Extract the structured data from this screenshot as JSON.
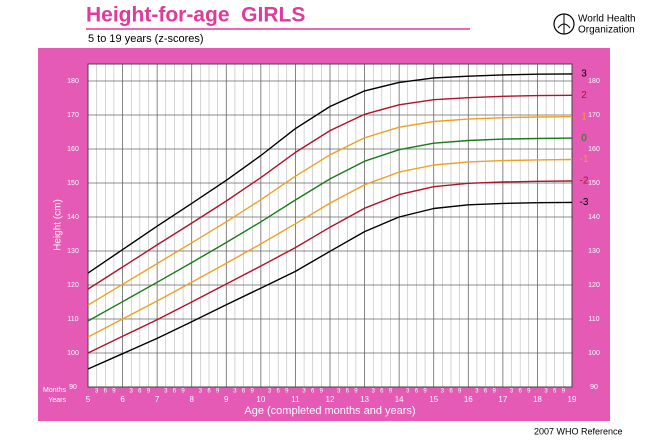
{
  "header": {
    "title": "Height-for-age  GIRLS",
    "subtitle": "5 to 19 years (z-scores)",
    "org": [
      "World Health",
      "Organization"
    ]
  },
  "footer": "2007 WHO Reference",
  "chart_data": {
    "type": "line",
    "y_label": "Height (cm)",
    "x_label": "Age (completed months and years)",
    "x_row_labels": [
      "Months",
      "Years"
    ],
    "x": [
      5,
      6,
      7,
      8,
      9,
      10,
      11,
      12,
      13,
      14,
      15,
      16,
      17,
      18,
      19
    ],
    "xlim": [
      5,
      19
    ],
    "ylim": [
      90,
      185
    ],
    "xticks": [
      5,
      6,
      7,
      8,
      9,
      10,
      11,
      12,
      13,
      14,
      15,
      16,
      17,
      18,
      19
    ],
    "xminorticks": [
      {
        "value": 5.25,
        "label": "3"
      },
      {
        "value": 5.5,
        "label": "6"
      },
      {
        "value": 5.75,
        "label": "9"
      },
      {
        "value": 6.25,
        "label": "3"
      },
      {
        "value": 6.5,
        "label": "6"
      },
      {
        "value": 6.75,
        "label": "9"
      },
      {
        "value": 7.25,
        "label": "3"
      },
      {
        "value": 7.5,
        "label": "6"
      },
      {
        "value": 7.75,
        "label": "9"
      },
      {
        "value": 8.25,
        "label": "3"
      },
      {
        "value": 8.5,
        "label": "6"
      },
      {
        "value": 8.75,
        "label": "9"
      },
      {
        "value": 9.25,
        "label": "3"
      },
      {
        "value": 9.5,
        "label": "6"
      },
      {
        "value": 9.75,
        "label": "9"
      },
      {
        "value": 10.25,
        "label": "3"
      },
      {
        "value": 10.5,
        "label": "6"
      },
      {
        "value": 10.75,
        "label": "9"
      },
      {
        "value": 11.25,
        "label": "3"
      },
      {
        "value": 11.5,
        "label": "6"
      },
      {
        "value": 11.75,
        "label": "9"
      },
      {
        "value": 12.25,
        "label": "3"
      },
      {
        "value": 12.5,
        "label": "6"
      },
      {
        "value": 12.75,
        "label": "9"
      },
      {
        "value": 13.25,
        "label": "3"
      },
      {
        "value": 13.5,
        "label": "6"
      },
      {
        "value": 13.75,
        "label": "9"
      },
      {
        "value": 14.25,
        "label": "3"
      },
      {
        "value": 14.5,
        "label": "6"
      },
      {
        "value": 14.75,
        "label": "9"
      },
      {
        "value": 15.25,
        "label": "3"
      },
      {
        "value": 15.5,
        "label": "6"
      },
      {
        "value": 15.75,
        "label": "9"
      },
      {
        "value": 16.25,
        "label": "3"
      },
      {
        "value": 16.5,
        "label": "6"
      },
      {
        "value": 16.75,
        "label": "9"
      },
      {
        "value": 17.25,
        "label": "3"
      },
      {
        "value": 17.5,
        "label": "6"
      },
      {
        "value": 17.75,
        "label": "9"
      },
      {
        "value": 18.25,
        "label": "3"
      },
      {
        "value": 18.5,
        "label": "6"
      },
      {
        "value": 18.75,
        "label": "9"
      }
    ],
    "yticks": [
      90,
      100,
      110,
      120,
      130,
      140,
      150,
      160,
      170,
      180
    ],
    "grid": true,
    "series": [
      {
        "name": "3",
        "color": "#000000",
        "values": [
          123.5,
          130.4,
          137.3,
          144.0,
          150.8,
          158.1,
          166.0,
          172.5,
          177.1,
          179.6,
          180.9,
          181.4,
          181.8,
          182.0,
          182.1
        ]
      },
      {
        "name": "2",
        "color": "#b0132a",
        "values": [
          118.8,
          125.3,
          131.8,
          138.2,
          144.7,
          151.6,
          159.0,
          165.4,
          170.2,
          173.0,
          174.5,
          175.1,
          175.5,
          175.7,
          175.8
        ]
      },
      {
        "name": "1",
        "color": "#f0a020",
        "values": [
          114.1,
          120.2,
          126.3,
          132.4,
          138.6,
          145.1,
          152.0,
          158.3,
          163.3,
          166.4,
          168.1,
          168.8,
          169.2,
          169.4,
          169.5
        ]
      },
      {
        "name": "0",
        "color": "#1a7a1a",
        "values": [
          109.4,
          115.1,
          120.8,
          126.6,
          132.5,
          138.6,
          145.0,
          151.2,
          156.4,
          159.8,
          161.7,
          162.5,
          162.9,
          163.1,
          163.2
        ]
      },
      {
        "name": "-1",
        "color": "#f0a020",
        "values": [
          104.7,
          110.0,
          115.3,
          120.8,
          126.4,
          132.1,
          138.0,
          144.1,
          149.5,
          153.2,
          155.3,
          156.2,
          156.6,
          156.8,
          156.9
        ]
      },
      {
        "name": "-2",
        "color": "#b0132a",
        "values": [
          100.0,
          104.9,
          109.8,
          115.0,
          120.3,
          125.6,
          131.0,
          137.0,
          142.6,
          146.6,
          148.9,
          149.9,
          150.3,
          150.5,
          150.6
        ]
      },
      {
        "name": "-3",
        "color": "#000000",
        "values": [
          95.3,
          99.8,
          104.3,
          109.2,
          114.2,
          119.1,
          124.0,
          129.9,
          135.7,
          140.0,
          142.5,
          143.6,
          144.0,
          144.2,
          144.3
        ]
      }
    ]
  }
}
